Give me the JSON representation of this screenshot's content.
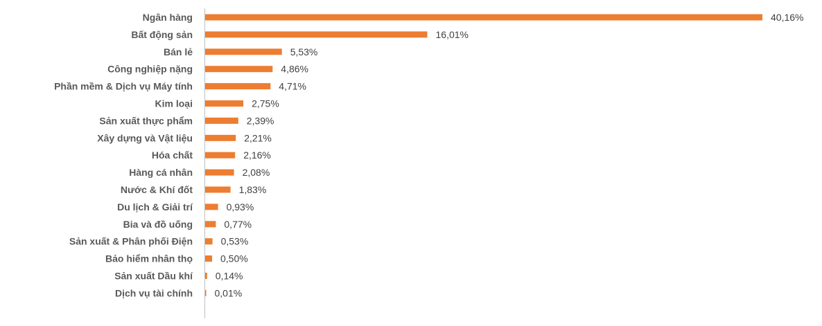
{
  "chart_data": {
    "type": "bar",
    "orientation": "horizontal",
    "categories": [
      "Ngân hàng",
      "Bất động sản",
      "Bán lẻ",
      "Công nghiệp nặng",
      "Phần mềm & Dịch vụ Máy tính",
      "Kim loại",
      "Sản xuất thực phẩm",
      "Xây dựng và Vật liệu",
      "Hóa chất",
      "Hàng cá nhân",
      "Nước & Khí đốt",
      "Du lịch & Giải trí",
      "Bia và đồ uống",
      "Sản xuất & Phân phối Điện",
      "Bảo hiểm nhân thọ",
      "Sản xuất Dầu khí",
      "Dịch vụ tài chính"
    ],
    "values": [
      40.16,
      16.01,
      5.53,
      4.86,
      4.71,
      2.75,
      2.39,
      2.21,
      2.16,
      2.08,
      1.83,
      0.93,
      0.77,
      0.53,
      0.5,
      0.14,
      0.01
    ],
    "value_labels": [
      "40,16%",
      "16,01%",
      "5,53%",
      "4,86%",
      "4,71%",
      "2,75%",
      "2,39%",
      "2,21%",
      "2,16%",
      "2,08%",
      "1,83%",
      "0,93%",
      "0,77%",
      "0,53%",
      "0,50%",
      "0,14%",
      "0,01%"
    ],
    "title": "",
    "xlabel": "",
    "ylabel": "",
    "xlim": [
      0,
      40.16
    ],
    "grid": false,
    "legend": "none",
    "bar_color": "#ED7D31",
    "axis_color": "#BFBFBF"
  }
}
